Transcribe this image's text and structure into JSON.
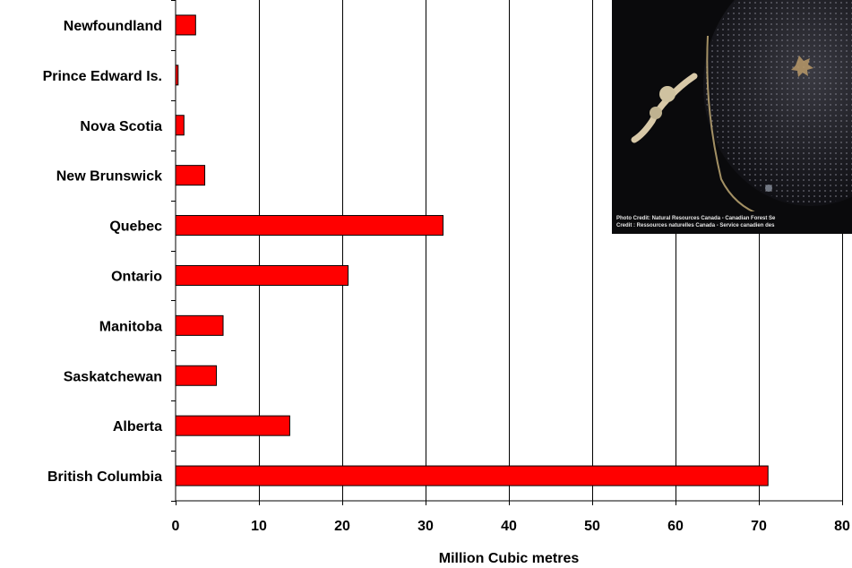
{
  "chart_data": {
    "type": "bar",
    "orientation": "horizontal",
    "categories": [
      "Newfoundland",
      "Prince Edward Is.",
      "Nova Scotia",
      "New Brunswick",
      "Quebec",
      "Ontario",
      "Manitoba",
      "Saskatchewan",
      "Alberta",
      "British Columbia"
    ],
    "values": [
      2.4,
      0.3,
      1.0,
      3.5,
      32.1,
      20.7,
      5.7,
      4.9,
      13.7,
      71.1
    ],
    "xlabel": "Million Cubic metres",
    "ylabel": "",
    "title": "",
    "xlim": [
      0,
      80
    ],
    "xticks": [
      0,
      10,
      20,
      30,
      40,
      50,
      60,
      70,
      80
    ],
    "grid": "vertical",
    "bar_color": "#ff0000"
  },
  "inset_photo": {
    "credit_line1": "Photo Credit: Natural Resources Canada - Canadian Forest Se",
    "credit_line2": "Credit : Ressources naturelles Canada - Service canadien des"
  }
}
